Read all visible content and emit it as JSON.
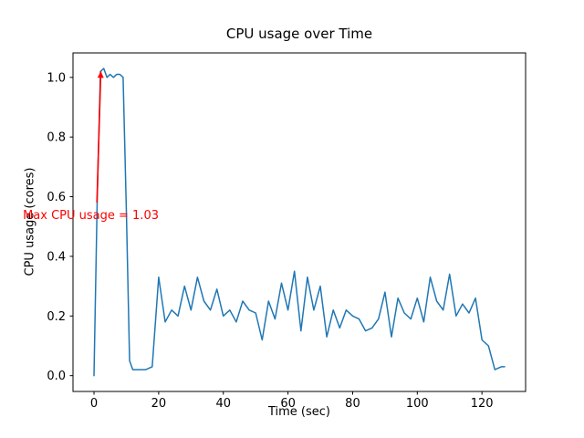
{
  "figure": {
    "title": "CPU usage over Time",
    "xlabel": "Time (sec)",
    "ylabel": "CPU usage (cores)"
  },
  "chart_data": {
    "type": "line",
    "title": "CPU usage over Time",
    "xlabel": "Time (sec)",
    "ylabel": "CPU usage (cores)",
    "grid": false,
    "legend": "none",
    "xlim": [
      -6.5,
      133.5
    ],
    "ylim": [
      -0.053,
      1.082
    ],
    "xticks": [
      0,
      20,
      40,
      60,
      80,
      100,
      120
    ],
    "xticklabels": [
      "0",
      "20",
      "40",
      "60",
      "80",
      "100",
      "120"
    ],
    "yticks": [
      0.0,
      0.2,
      0.4,
      0.6,
      0.8,
      1.0
    ],
    "yticklabels": [
      "0.0",
      "0.2",
      "0.4",
      "0.6",
      "0.8",
      "1.0"
    ],
    "line_color": "#1f77b4",
    "series": [
      {
        "name": "CPU usage",
        "x": [
          0,
          1,
          2,
          3,
          4,
          5,
          6,
          7,
          8,
          9,
          10,
          11,
          12,
          14,
          16,
          18,
          20,
          22,
          24,
          26,
          28,
          30,
          32,
          34,
          36,
          38,
          40,
          42,
          44,
          46,
          48,
          50,
          52,
          54,
          56,
          58,
          60,
          62,
          64,
          66,
          68,
          70,
          72,
          74,
          76,
          78,
          80,
          82,
          84,
          86,
          88,
          90,
          92,
          94,
          96,
          98,
          100,
          102,
          104,
          106,
          108,
          110,
          112,
          114,
          116,
          118,
          120,
          122,
          124,
          126,
          127
        ],
        "y": [
          0.0,
          0.6,
          1.02,
          1.03,
          1.0,
          1.01,
          1.0,
          1.01,
          1.01,
          1.0,
          0.55,
          0.05,
          0.02,
          0.02,
          0.02,
          0.03,
          0.33,
          0.18,
          0.22,
          0.2,
          0.3,
          0.22,
          0.33,
          0.25,
          0.22,
          0.29,
          0.2,
          0.22,
          0.18,
          0.25,
          0.22,
          0.21,
          0.12,
          0.25,
          0.19,
          0.31,
          0.22,
          0.35,
          0.15,
          0.33,
          0.22,
          0.3,
          0.13,
          0.22,
          0.16,
          0.22,
          0.2,
          0.19,
          0.15,
          0.16,
          0.19,
          0.28,
          0.13,
          0.26,
          0.21,
          0.19,
          0.26,
          0.18,
          0.33,
          0.25,
          0.22,
          0.34,
          0.2,
          0.24,
          0.21,
          0.26,
          0.12,
          0.1,
          0.02,
          0.03,
          0.03
        ]
      }
    ],
    "annotation": {
      "text": "Max CPU usage = 1.03",
      "max_value": 1.03,
      "color": "#ff0000",
      "text_pos": [
        -22,
        0.535
      ],
      "arrow_from": [
        0.9,
        0.58
      ],
      "arrow_to": [
        2.1,
        1.02
      ]
    }
  }
}
